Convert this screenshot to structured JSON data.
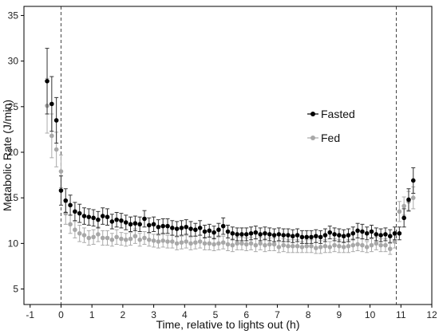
{
  "chart_data": {
    "type": "scatter",
    "xlabel": "Time, relative to lights out (h)",
    "ylabel": "Metabolic Rate (J/min)",
    "xlim": [
      -1.2,
      12.0
    ],
    "ylim": [
      3.3,
      36.0
    ],
    "x_ticks": [
      "-1",
      "0",
      "1",
      "2",
      "3",
      "4",
      "5",
      "6",
      "7",
      "8",
      "9",
      "10",
      "11",
      "12"
    ],
    "y_ticks": [
      "5",
      "10",
      "15",
      "20",
      "25",
      "30",
      "35"
    ],
    "grid": false,
    "legend_position": "right",
    "reference_lines_x": [
      0,
      10.85
    ],
    "series": [
      {
        "name": "Fasted",
        "color": "#000000",
        "error_bar_color": "#333333",
        "x": [
          -0.45,
          -0.3,
          -0.15,
          0,
          0.15,
          0.3,
          0.45,
          0.6,
          0.75,
          0.9,
          1.05,
          1.2,
          1.35,
          1.5,
          1.65,
          1.8,
          1.95,
          2.1,
          2.25,
          2.4,
          2.55,
          2.7,
          2.85,
          3.0,
          3.15,
          3.3,
          3.45,
          3.6,
          3.75,
          3.9,
          4.05,
          4.2,
          4.35,
          4.5,
          4.65,
          4.8,
          4.95,
          5.1,
          5.25,
          5.4,
          5.55,
          5.7,
          5.85,
          6.0,
          6.15,
          6.3,
          6.45,
          6.6,
          6.75,
          6.9,
          7.05,
          7.2,
          7.35,
          7.5,
          7.65,
          7.8,
          7.95,
          8.1,
          8.25,
          8.4,
          8.55,
          8.7,
          8.85,
          9.0,
          9.15,
          9.3,
          9.45,
          9.6,
          9.75,
          9.9,
          10.05,
          10.2,
          10.35,
          10.5,
          10.65,
          10.8,
          10.95,
          11.1,
          11.25,
          11.4
        ],
        "y": [
          27.8,
          25.3,
          23.5,
          15.8,
          14.7,
          14.2,
          13.5,
          13.3,
          13.0,
          12.9,
          12.8,
          12.6,
          13.0,
          12.9,
          12.4,
          12.6,
          12.5,
          12.3,
          12.1,
          12.2,
          12.1,
          12.7,
          12.0,
          12.1,
          11.8,
          11.9,
          11.9,
          11.7,
          11.6,
          11.7,
          11.8,
          11.6,
          11.5,
          11.7,
          11.3,
          11.4,
          11.2,
          11.5,
          11.9,
          11.3,
          11.1,
          11.0,
          11.0,
          11.0,
          11.1,
          11.2,
          11.0,
          11.1,
          11.0,
          10.9,
          11.0,
          10.9,
          10.9,
          10.8,
          10.9,
          10.7,
          10.7,
          10.7,
          10.8,
          10.7,
          10.9,
          11.2,
          11.0,
          10.9,
          10.8,
          10.9,
          11.1,
          11.4,
          11.3,
          11.1,
          11.3,
          11.0,
          10.9,
          11.0,
          10.8,
          11.1,
          11.1,
          12.8,
          14.8,
          16.9
        ],
        "error": [
          3.6,
          3.0,
          2.5,
          1.6,
          1.3,
          1.1,
          1.0,
          1.0,
          0.9,
          0.9,
          0.9,
          0.9,
          0.9,
          0.9,
          0.8,
          0.8,
          0.8,
          0.8,
          0.8,
          0.8,
          0.8,
          0.9,
          0.8,
          0.8,
          0.8,
          0.8,
          0.8,
          0.8,
          0.8,
          0.8,
          0.8,
          0.8,
          0.7,
          0.8,
          0.7,
          0.7,
          0.7,
          0.7,
          0.9,
          0.7,
          0.7,
          0.7,
          0.7,
          0.7,
          0.7,
          0.7,
          0.7,
          0.7,
          0.7,
          0.7,
          0.7,
          0.7,
          0.7,
          0.7,
          0.7,
          0.7,
          0.7,
          0.7,
          0.7,
          0.7,
          0.7,
          0.7,
          0.7,
          0.7,
          0.7,
          0.7,
          0.7,
          0.8,
          0.8,
          0.7,
          0.7,
          0.7,
          0.7,
          0.7,
          0.7,
          0.7,
          0.7,
          1.0,
          1.2,
          1.4
        ]
      },
      {
        "name": "Fed",
        "color": "#a8a8a8",
        "error_bar_color": "#aaaaaa",
        "x": [
          -0.45,
          -0.3,
          -0.15,
          0,
          0.15,
          0.3,
          0.45,
          0.6,
          0.75,
          0.9,
          1.05,
          1.2,
          1.35,
          1.5,
          1.65,
          1.8,
          1.95,
          2.1,
          2.25,
          2.4,
          2.55,
          2.7,
          2.85,
          3.0,
          3.15,
          3.3,
          3.45,
          3.6,
          3.75,
          3.9,
          4.05,
          4.2,
          4.35,
          4.5,
          4.65,
          4.8,
          4.95,
          5.1,
          5.25,
          5.4,
          5.55,
          5.7,
          5.85,
          6.0,
          6.15,
          6.3,
          6.45,
          6.6,
          6.75,
          6.9,
          7.05,
          7.2,
          7.35,
          7.5,
          7.65,
          7.8,
          7.95,
          8.1,
          8.25,
          8.4,
          8.55,
          8.7,
          8.85,
          9.0,
          9.15,
          9.3,
          9.45,
          9.6,
          9.75,
          9.9,
          10.05,
          10.2,
          10.35,
          10.5,
          10.65,
          10.8,
          10.95,
          11.1,
          11.25,
          11.4
        ],
        "y": [
          25.1,
          21.8,
          20.3,
          17.9,
          13.3,
          12.1,
          11.5,
          11.1,
          10.9,
          10.6,
          10.7,
          11.0,
          10.6,
          10.6,
          10.4,
          10.7,
          10.5,
          10.4,
          10.5,
          10.8,
          10.4,
          10.6,
          10.4,
          10.3,
          10.2,
          10.3,
          10.2,
          10.2,
          10.0,
          10.1,
          10.2,
          10.0,
          10.1,
          10.2,
          10.0,
          10.0,
          9.9,
          10.0,
          10.1,
          9.9,
          9.8,
          10.0,
          10.0,
          9.9,
          10.0,
          9.8,
          10.0,
          9.8,
          9.9,
          9.9,
          9.6,
          9.8,
          9.7,
          9.7,
          9.7,
          9.6,
          9.7,
          9.7,
          9.5,
          9.6,
          9.7,
          9.6,
          9.8,
          9.7,
          9.6,
          9.7,
          9.8,
          9.9,
          9.8,
          9.6,
          9.8,
          10.0,
          9.8,
          9.8,
          9.4,
          10.2,
          13.5,
          14.1,
          14.6,
          15.0
        ],
        "error": [
          3.0,
          2.4,
          1.9,
          1.8,
          1.2,
          1.0,
          0.9,
          0.9,
          0.8,
          0.8,
          0.8,
          0.8,
          0.8,
          0.8,
          0.7,
          0.8,
          0.7,
          0.7,
          0.7,
          0.8,
          0.7,
          0.7,
          0.7,
          0.7,
          0.7,
          0.7,
          0.7,
          0.7,
          0.7,
          0.7,
          0.7,
          0.7,
          0.7,
          0.7,
          0.7,
          0.7,
          0.7,
          0.7,
          0.7,
          0.7,
          0.7,
          0.7,
          0.7,
          0.7,
          0.7,
          0.7,
          0.7,
          0.7,
          0.7,
          0.7,
          0.6,
          0.7,
          0.7,
          0.7,
          0.7,
          0.6,
          0.7,
          0.7,
          0.6,
          0.7,
          0.7,
          0.6,
          0.7,
          0.7,
          0.6,
          0.7,
          0.7,
          0.7,
          0.7,
          0.6,
          0.7,
          0.7,
          0.7,
          0.7,
          0.6,
          0.7,
          1.1,
          1.0,
          1.1,
          1.2
        ]
      }
    ]
  }
}
